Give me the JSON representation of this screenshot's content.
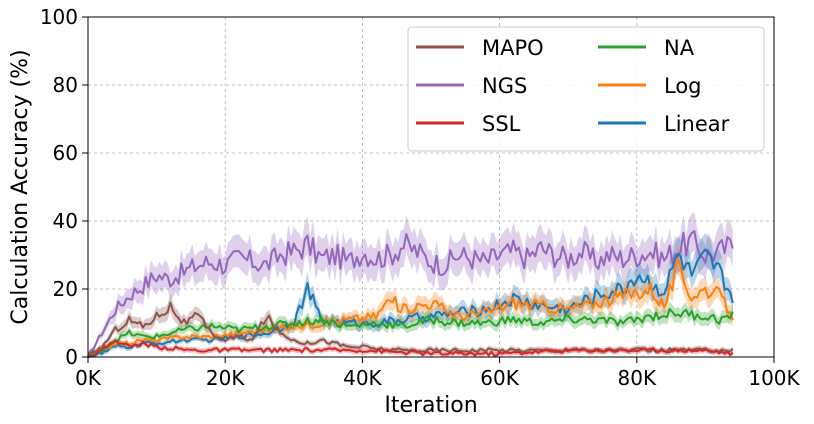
{
  "chart_data": {
    "type": "line",
    "title": "",
    "xlabel": "Iteration",
    "ylabel": "Calculation Accuracy (%)",
    "xlim": [
      0,
      100000
    ],
    "ylim": [
      0,
      100
    ],
    "x_ticks": [
      0,
      20000,
      40000,
      60000,
      80000,
      100000
    ],
    "x_tick_labels": [
      "0K",
      "20K",
      "40K",
      "60K",
      "80K",
      "100K"
    ],
    "y_ticks": [
      0,
      20,
      40,
      60,
      80,
      100
    ],
    "y_tick_labels": [
      "0",
      "20",
      "40",
      "60",
      "80",
      "100"
    ],
    "grid": true,
    "legend_position": "top-right",
    "legend_columns": 2,
    "series": [
      {
        "name": "MAPO",
        "color": "#8c564b",
        "x": [
          0,
          2000,
          4000,
          6000,
          8000,
          10000,
          12000,
          14000,
          16000,
          18000,
          20000,
          22000,
          24000,
          26000,
          28000,
          30000,
          32000,
          34000,
          36000,
          38000,
          40000,
          44000,
          50000,
          60000,
          70000,
          80000,
          90000,
          94000
        ],
        "values": [
          0,
          3,
          8,
          11,
          9,
          12,
          15,
          10,
          12,
          7,
          5,
          6,
          5,
          12,
          7,
          5,
          4,
          5,
          4,
          3,
          3,
          2,
          2,
          2,
          2,
          2,
          2,
          2
        ]
      },
      {
        "name": "NGS",
        "color": "#9467bd",
        "x": [
          0,
          2000,
          4000,
          6000,
          8000,
          10000,
          12000,
          14000,
          16000,
          18000,
          20000,
          22000,
          24000,
          26000,
          28000,
          30000,
          32000,
          34000,
          36000,
          38000,
          40000,
          42000,
          44000,
          46000,
          48000,
          50000,
          52000,
          54000,
          56000,
          58000,
          60000,
          62000,
          64000,
          66000,
          68000,
          70000,
          72000,
          74000,
          76000,
          78000,
          80000,
          82000,
          84000,
          86000,
          88000,
          90000,
          92000,
          94000
        ],
        "values": [
          0,
          7,
          14,
          18,
          21,
          24,
          23,
          25,
          27,
          28,
          27,
          29,
          28,
          27,
          30,
          31,
          33,
          29,
          30,
          28,
          31,
          29,
          30,
          33,
          31,
          28,
          27,
          30,
          29,
          28,
          30,
          31,
          29,
          32,
          30,
          29,
          31,
          28,
          30,
          29,
          30,
          31,
          29,
          32,
          34,
          30,
          31,
          33
        ]
      },
      {
        "name": "SSL",
        "color": "#d62728",
        "x": [
          0,
          2000,
          4000,
          6000,
          8000,
          10000,
          15000,
          20000,
          30000,
          40000,
          50000,
          60000,
          70000,
          80000,
          90000,
          94000
        ],
        "values": [
          0,
          2,
          5,
          3,
          4,
          3,
          2,
          2,
          2,
          2,
          1,
          1,
          2,
          2,
          2,
          1
        ]
      },
      {
        "name": "NA",
        "color": "#2ca02c",
        "x": [
          0,
          2000,
          4000,
          6000,
          8000,
          10000,
          14000,
          18000,
          22000,
          26000,
          30000,
          34000,
          38000,
          42000,
          46000,
          50000,
          54000,
          58000,
          62000,
          66000,
          70000,
          74000,
          78000,
          82000,
          86000,
          90000,
          92000,
          94000
        ],
        "values": [
          0,
          2,
          5,
          7,
          6,
          6,
          8,
          9,
          8,
          9,
          10,
          11,
          9,
          10,
          9,
          11,
          10,
          10,
          11,
          10,
          11,
          11,
          10,
          12,
          13,
          12,
          11,
          12
        ]
      },
      {
        "name": "Log",
        "color": "#ff7f0e",
        "x": [
          0,
          2000,
          4000,
          6000,
          8000,
          10000,
          14000,
          18000,
          22000,
          26000,
          30000,
          34000,
          38000,
          42000,
          44000,
          46000,
          50000,
          54000,
          58000,
          62000,
          66000,
          70000,
          74000,
          78000,
          82000,
          84000,
          86000,
          88000,
          90000,
          92000,
          94000
        ],
        "values": [
          0,
          2,
          4,
          4,
          5,
          5,
          6,
          6,
          7,
          8,
          9,
          10,
          11,
          12,
          17,
          14,
          16,
          12,
          13,
          16,
          15,
          14,
          16,
          18,
          20,
          15,
          26,
          18,
          20,
          18,
          12
        ]
      },
      {
        "name": "Linear",
        "color": "#1f77b4",
        "x": [
          0,
          2000,
          4000,
          6000,
          8000,
          10000,
          14000,
          18000,
          22000,
          26000,
          30000,
          32000,
          34000,
          38000,
          42000,
          46000,
          50000,
          54000,
          58000,
          62000,
          66000,
          70000,
          74000,
          78000,
          80000,
          82000,
          84000,
          86000,
          88000,
          90000,
          92000,
          94000
        ],
        "values": [
          0,
          1,
          3,
          3,
          4,
          4,
          5,
          5,
          6,
          7,
          10,
          20,
          11,
          10,
          10,
          11,
          12,
          13,
          14,
          17,
          15,
          14,
          18,
          20,
          24,
          22,
          19,
          30,
          24,
          29,
          25,
          17
        ]
      }
    ]
  }
}
